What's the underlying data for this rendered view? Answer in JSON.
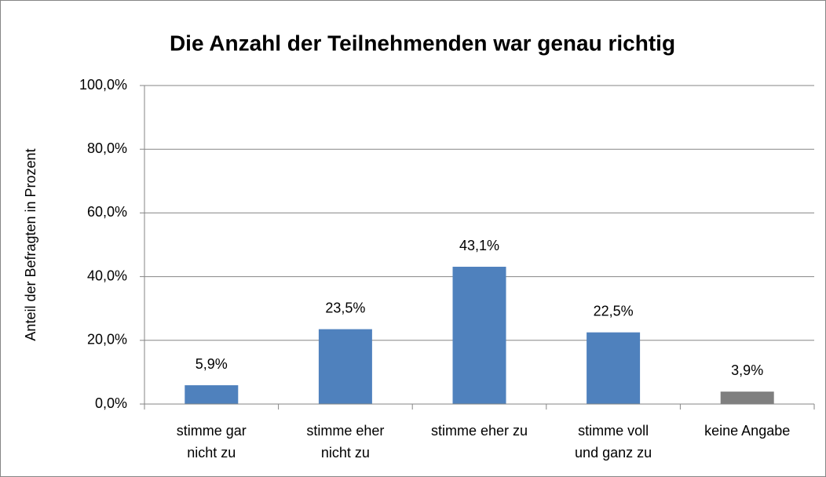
{
  "chart_data": {
    "type": "bar",
    "title": "Die Anzahl der Teilnehmenden war genau richtig",
    "y_label": "Anteil der Befragten in Prozent",
    "categories": [
      "stimme gar\nnicht zu",
      "stimme eher\nnicht zu",
      "stimme eher zu",
      "stimme voll\nund ganz zu",
      "keine Angabe"
    ],
    "values": [
      5.9,
      23.5,
      43.1,
      22.5,
      3.9
    ],
    "value_labels": [
      "5,9%",
      "23,5%",
      "43,1%",
      "22,5%",
      "3,9%"
    ],
    "colors": [
      "#4f81bd",
      "#4f81bd",
      "#4f81bd",
      "#4f81bd",
      "#7f7f7f"
    ],
    "ylim": [
      0,
      100
    ],
    "yticks": [
      {
        "value": 0,
        "label": "0,0%"
      },
      {
        "value": 20,
        "label": "20,0%"
      },
      {
        "value": 40,
        "label": "40,0%"
      },
      {
        "value": 60,
        "label": "60,0%"
      },
      {
        "value": 80,
        "label": "80,0%"
      },
      {
        "value": 100,
        "label": "100,0%"
      }
    ],
    "grid": true
  }
}
